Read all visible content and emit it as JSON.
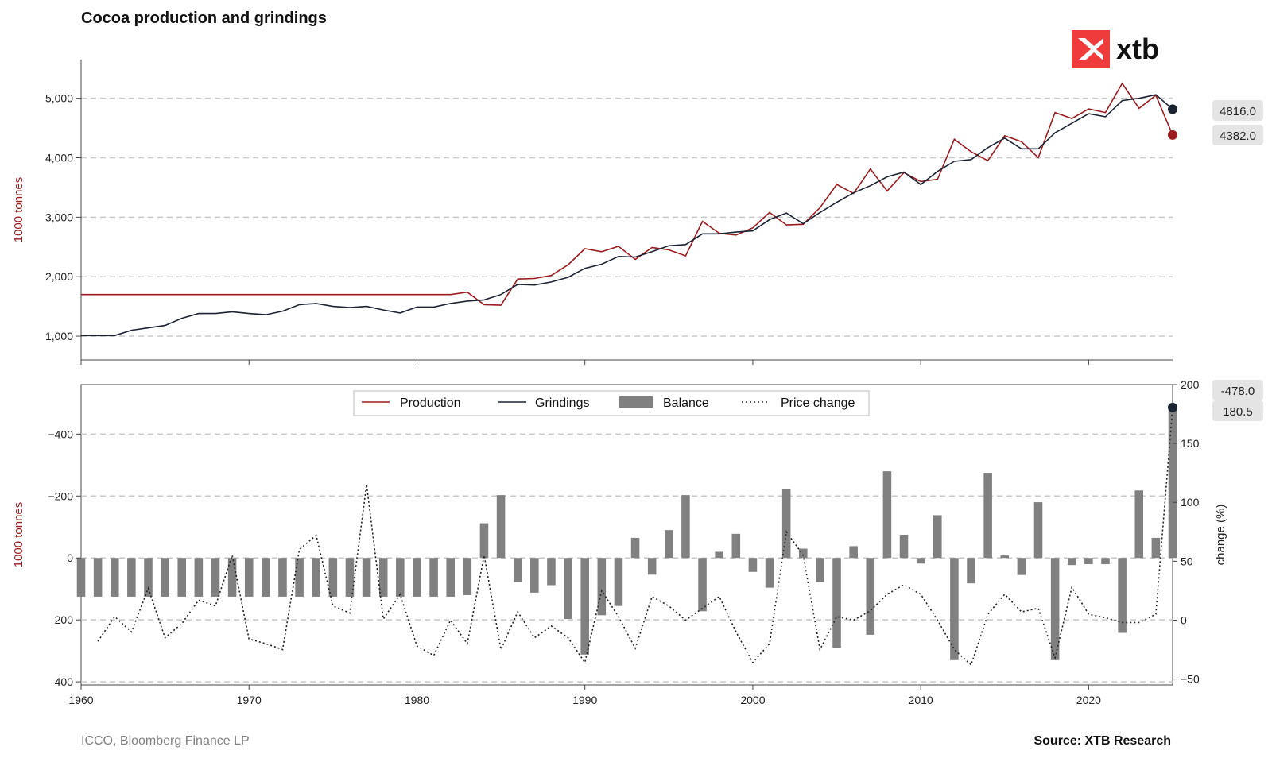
{
  "title": "Cocoa production and grindings",
  "footer": {
    "left": "ICCO, Bloomberg Finance LP",
    "right": "Source: XTB Research"
  },
  "logo": {
    "text": "xtb",
    "color": "#ef3b3b"
  },
  "colors": {
    "production": "#9b1b1f",
    "grindings": "#1c2333",
    "balance": "#808080",
    "price_change": "#222222",
    "grid": "#c8c8c8",
    "label_box": "#e4e4e4"
  },
  "chart_data": [
    {
      "type": "line",
      "panel": "top",
      "ylabel": "1000 tonnes",
      "ylim": [
        600,
        5650
      ],
      "yticks": [
        1000,
        2000,
        3000,
        4000,
        5000
      ],
      "xlim": [
        1960,
        2025
      ],
      "grid": "horizontal dashed",
      "series": [
        {
          "name": "Production",
          "x": [
            1960,
            1961,
            1962,
            1963,
            1964,
            1965,
            1966,
            1967,
            1968,
            1969,
            1970,
            1971,
            1972,
            1973,
            1974,
            1975,
            1976,
            1977,
            1978,
            1979,
            1980,
            1981,
            1982,
            1983,
            1984,
            1985,
            1986,
            1987,
            1988,
            1989,
            1990,
            1991,
            1992,
            1993,
            1994,
            1995,
            1996,
            1997,
            1998,
            1999,
            2000,
            2001,
            2002,
            2003,
            2004,
            2005,
            2006,
            2007,
            2008,
            2009,
            2010,
            2011,
            2012,
            2013,
            2014,
            2015,
            2016,
            2017,
            2018,
            2019,
            2020,
            2021,
            2022,
            2023,
            2024,
            2025
          ],
          "values": [
            1700,
            1700,
            1700,
            1700,
            1700,
            1700,
            1700,
            1700,
            1700,
            1700,
            1700,
            1700,
            1700,
            1700,
            1700,
            1700,
            1700,
            1700,
            1700,
            1700,
            1700,
            1700,
            1700,
            1740,
            1530,
            1520,
            1960,
            1970,
            2020,
            2200,
            2470,
            2420,
            2510,
            2290,
            2490,
            2450,
            2350,
            2930,
            2730,
            2700,
            2820,
            3080,
            2870,
            2880,
            3160,
            3550,
            3400,
            3810,
            3440,
            3750,
            3600,
            3640,
            4310,
            4100,
            3950,
            4370,
            4270,
            4000,
            4760,
            4660,
            4820,
            4760,
            5250,
            4830,
            5050,
            4382
          ],
          "end_label": "4382.0"
        },
        {
          "name": "Grindings",
          "x": [
            1960,
            1961,
            1962,
            1963,
            1964,
            1965,
            1966,
            1967,
            1968,
            1969,
            1970,
            1971,
            1972,
            1973,
            1974,
            1975,
            1976,
            1977,
            1978,
            1979,
            1980,
            1981,
            1982,
            1983,
            1984,
            1985,
            1986,
            1987,
            1988,
            1989,
            1990,
            1991,
            1992,
            1993,
            1994,
            1995,
            1996,
            1997,
            1998,
            1999,
            2000,
            2001,
            2002,
            2003,
            2004,
            2005,
            2006,
            2007,
            2008,
            2009,
            2010,
            2011,
            2012,
            2013,
            2014,
            2015,
            2016,
            2017,
            2018,
            2019,
            2020,
            2021,
            2022,
            2023,
            2024,
            2025
          ],
          "values": [
            1010,
            1010,
            1010,
            1100,
            1140,
            1180,
            1300,
            1380,
            1380,
            1410,
            1380,
            1360,
            1420,
            1530,
            1550,
            1500,
            1480,
            1500,
            1440,
            1390,
            1490,
            1490,
            1550,
            1590,
            1610,
            1700,
            1870,
            1860,
            1910,
            1990,
            2140,
            2210,
            2340,
            2330,
            2420,
            2520,
            2540,
            2720,
            2720,
            2750,
            2770,
            2960,
            3070,
            2890,
            3080,
            3250,
            3410,
            3530,
            3680,
            3760,
            3550,
            3770,
            3940,
            3970,
            4170,
            4330,
            4150,
            4150,
            4420,
            4580,
            4740,
            4690,
            4960,
            5000,
            5060,
            4816
          ],
          "end_label": "4816.0"
        }
      ]
    },
    {
      "type": "bar",
      "panel": "bottom",
      "ylabel": "1000 tonnes",
      "y2label": "change (%)",
      "ylim_inverted": [
        410,
        -560
      ],
      "yticks": [
        400,
        200,
        0,
        -200,
        -400
      ],
      "y2lim": [
        -55,
        200
      ],
      "y2ticks": [
        -50,
        0,
        50,
        100,
        150,
        200
      ],
      "xlim": [
        1960,
        2025
      ],
      "xticks": [
        1960,
        1970,
        1980,
        1990,
        2000,
        2010,
        2020
      ],
      "legend": "top-center",
      "series": [
        {
          "name": "Balance",
          "x": [
            1960,
            1961,
            1962,
            1963,
            1964,
            1965,
            1966,
            1967,
            1968,
            1969,
            1970,
            1971,
            1972,
            1973,
            1974,
            1975,
            1976,
            1977,
            1978,
            1979,
            1980,
            1981,
            1982,
            1983,
            1984,
            1985,
            1986,
            1987,
            1988,
            1989,
            1990,
            1991,
            1992,
            1993,
            1994,
            1995,
            1996,
            1997,
            1998,
            1999,
            2000,
            2001,
            2002,
            2003,
            2004,
            2005,
            2006,
            2007,
            2008,
            2009,
            2010,
            2011,
            2012,
            2013,
            2014,
            2015,
            2016,
            2017,
            2018,
            2019,
            2020,
            2021,
            2022,
            2023,
            2024,
            2025
          ],
          "values": [
            125,
            125,
            125,
            125,
            125,
            125,
            125,
            125,
            125,
            125,
            125,
            125,
            125,
            125,
            125,
            125,
            125,
            125,
            125,
            125,
            125,
            125,
            125,
            120,
            -112,
            -203,
            78,
            112,
            88,
            197,
            312,
            185,
            155,
            -65,
            54,
            -90,
            -203,
            172,
            -20,
            -78,
            45,
            96,
            -222,
            -30,
            78,
            290,
            -38,
            248,
            -280,
            -75,
            18,
            -138,
            330,
            82,
            -275,
            -8,
            55,
            -180,
            330,
            23,
            20,
            20,
            242,
            -218,
            -65,
            -478
          ],
          "end_label": "-478.0"
        },
        {
          "name": "Price change",
          "axis": "right",
          "x": [
            1961,
            1962,
            1963,
            1964,
            1965,
            1966,
            1967,
            1968,
            1969,
            1970,
            1971,
            1972,
            1973,
            1974,
            1975,
            1976,
            1977,
            1978,
            1979,
            1980,
            1981,
            1982,
            1983,
            1984,
            1985,
            1986,
            1987,
            1988,
            1989,
            1990,
            1991,
            1992,
            1993,
            1994,
            1995,
            1996,
            1997,
            1998,
            1999,
            2000,
            2001,
            2002,
            2003,
            2004,
            2005,
            2006,
            2007,
            2008,
            2009,
            2010,
            2011,
            2012,
            2013,
            2014,
            2015,
            2016,
            2017,
            2018,
            2019,
            2020,
            2021,
            2022,
            2023,
            2024,
            2025
          ],
          "values": [
            -18,
            3,
            -10,
            27,
            -15,
            -3,
            17,
            12,
            55,
            -16,
            -20,
            -25,
            60,
            72,
            12,
            6,
            115,
            1,
            22,
            -22,
            -30,
            0,
            -20,
            55,
            -25,
            7,
            -15,
            -5,
            -15,
            -36,
            25,
            3,
            -24,
            20,
            12,
            0,
            10,
            20,
            -10,
            -36,
            -20,
            75,
            55,
            -25,
            3,
            0,
            8,
            22,
            30,
            22,
            0,
            -25,
            -38,
            5,
            22,
            7,
            10,
            -32,
            28,
            5,
            2,
            -2,
            -2,
            5,
            180.5
          ],
          "end_label": "180.5"
        }
      ]
    }
  ]
}
